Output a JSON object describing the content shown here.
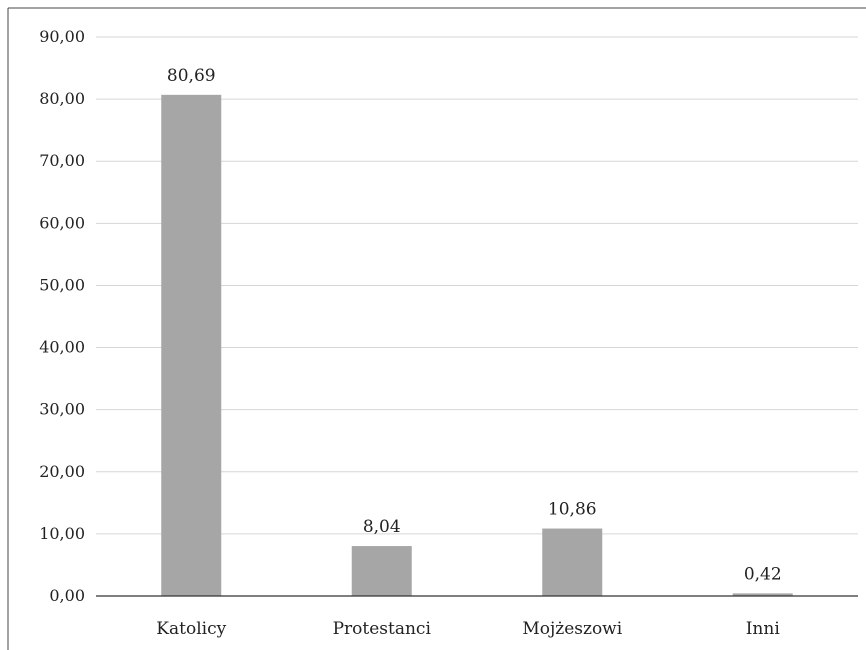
{
  "chart_data": {
    "type": "bar",
    "categories": [
      "Katolicy",
      "Protestanci",
      "Mojżeszowi",
      "Inni"
    ],
    "values": [
      80.69,
      8.04,
      10.86,
      0.42
    ],
    "data_labels": [
      "80,69",
      "8,04",
      "10,86",
      "0,42"
    ],
    "ylim": [
      0,
      90
    ],
    "yticks": [
      0,
      10,
      20,
      30,
      40,
      50,
      60,
      70,
      80,
      90
    ],
    "ytick_labels": [
      "0,00",
      "10,00",
      "20,00",
      "30,00",
      "40,00",
      "50,00",
      "60,00",
      "70,00",
      "80,00",
      "90,00"
    ],
    "title": "",
    "xlabel": "",
    "ylabel": "",
    "grid": true,
    "legend": "none",
    "bar_color": "#a6a6a6"
  }
}
